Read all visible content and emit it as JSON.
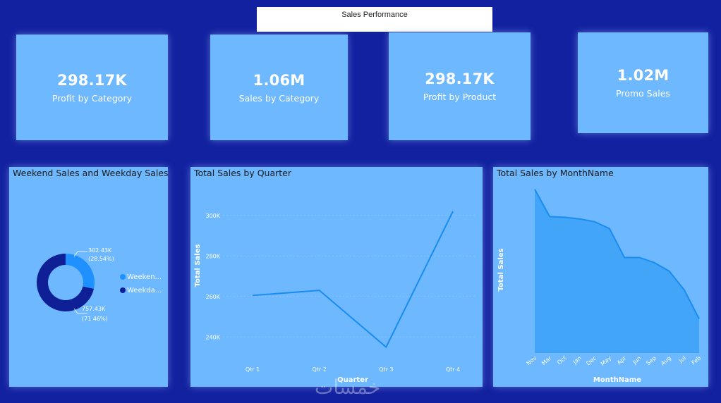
{
  "report": {
    "title": "Sales Performance"
  },
  "kpis": [
    {
      "value": "298.17K",
      "label": "Profit by Category"
    },
    {
      "value": "1.06M",
      "label": "Sales by Category"
    },
    {
      "value": "298.17K",
      "label": "Profit by Product"
    },
    {
      "value": "1.02M",
      "label": "Promo Sales"
    }
  ],
  "colors": {
    "background": "#1121a0",
    "panel": "#6db8ff",
    "line": "#1a8cf0",
    "weekend": "#1e90ff",
    "weekday": "#0f1f96"
  },
  "chart_data": [
    {
      "type": "pie",
      "title": "Weekend Sales and Weekday Sales",
      "categories": [
        "Weeken...",
        "Weekda..."
      ],
      "values": [
        302.43,
        757.43
      ],
      "unit": "K",
      "data_labels": [
        {
          "value": "302.43K",
          "percent": "(28.54%)"
        },
        {
          "value": "757.43K",
          "percent": "(71.46%)"
        }
      ],
      "legend_placement": "right"
    },
    {
      "type": "line",
      "title": "Total Sales by Quarter",
      "xlabel": "Quarter",
      "ylabel": "Total Sales",
      "categories": [
        "Qtr 1",
        "Qtr 2",
        "Qtr 3",
        "Qtr 4"
      ],
      "values": [
        260.5,
        263,
        235,
        302
      ],
      "yticks": [
        "240K",
        "260K",
        "280K",
        "300K"
      ],
      "ytick_values": [
        240,
        260,
        280,
        300
      ],
      "ylim": [
        230,
        310
      ],
      "grid": true
    },
    {
      "type": "area",
      "title": "Total Sales by MonthName",
      "xlabel": "MonthName",
      "ylabel": "Total Sales",
      "categories": [
        "Nov",
        "Mar",
        "Oct",
        "Jan",
        "Dec",
        "May",
        "Apr",
        "Jun",
        "Sep",
        "Aug",
        "Jul",
        "Feb"
      ],
      "values": [
        98,
        90,
        89.8,
        89.3,
        88.5,
        86.5,
        78,
        78,
        76.5,
        74,
        68.5,
        60
      ],
      "ylim": [
        50,
        100
      ],
      "grid": false
    }
  ],
  "watermark": "خمسات"
}
